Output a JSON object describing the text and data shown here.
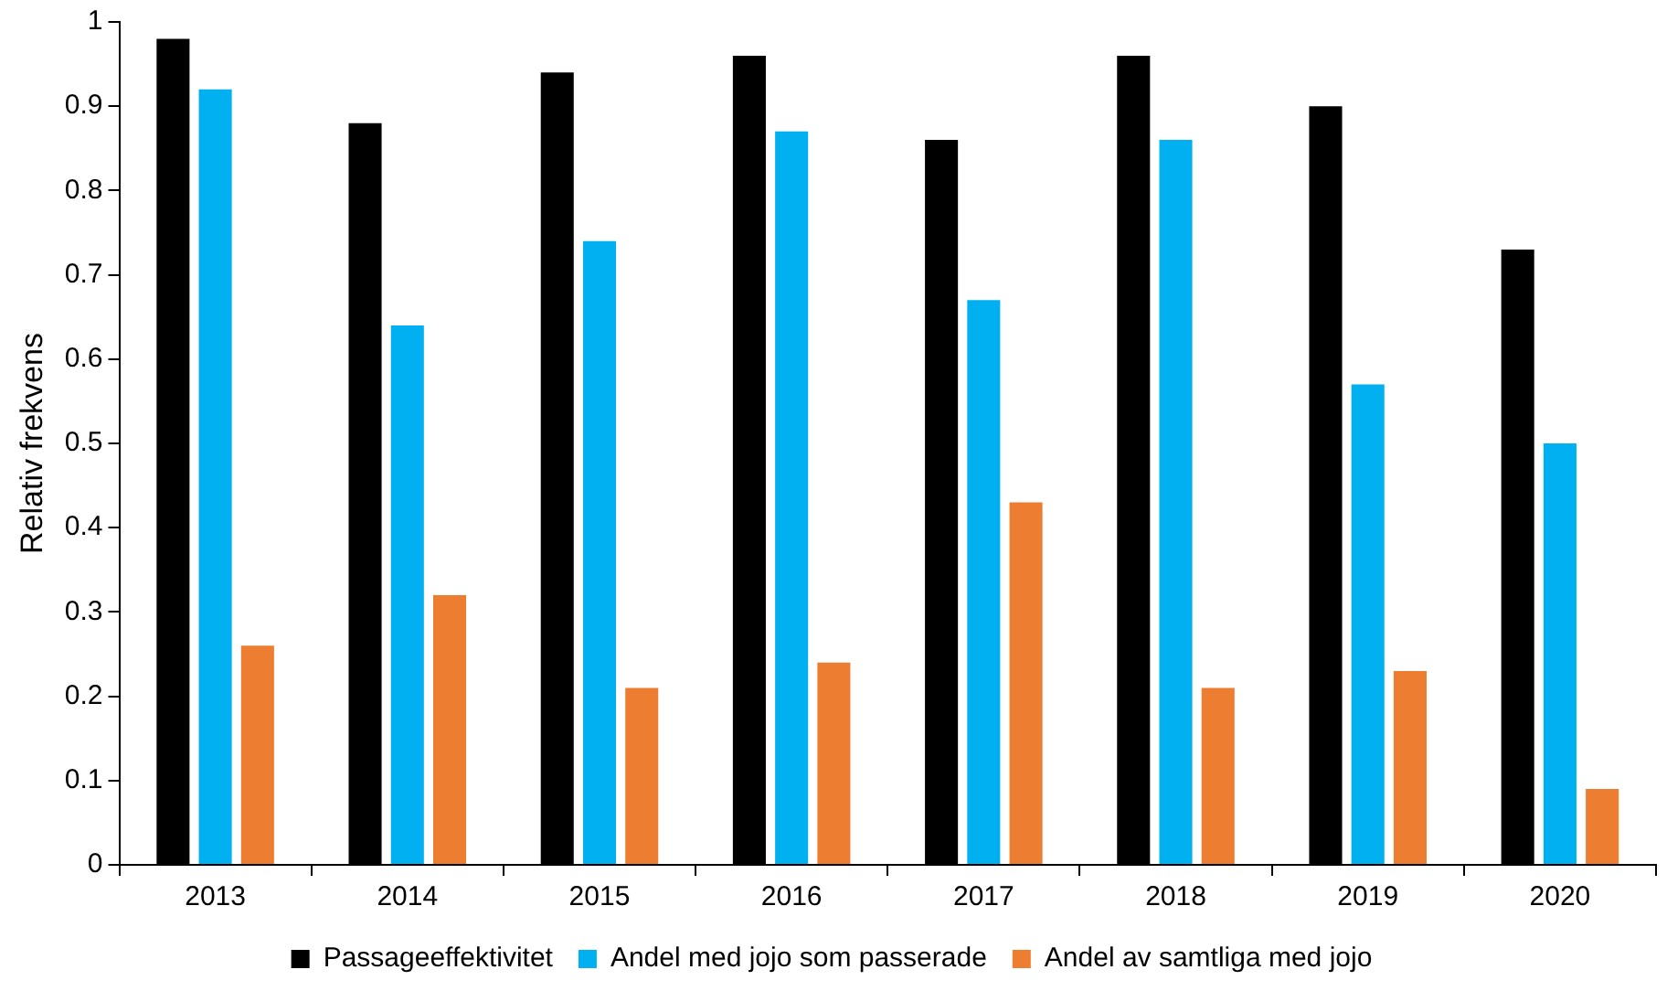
{
  "chart_data": {
    "type": "bar",
    "ylabel": "Relativ frekvens",
    "categories": [
      "2013",
      "2014",
      "2015",
      "2016",
      "2017",
      "2018",
      "2019",
      "2020"
    ],
    "series": [
      {
        "name": "Passageeffektivitet",
        "color": "#000000",
        "values": [
          0.98,
          0.88,
          0.94,
          0.96,
          0.86,
          0.96,
          0.9,
          0.73
        ]
      },
      {
        "name": "Andel med jojo som passerade",
        "color": "#00b0f0",
        "values": [
          0.92,
          0.64,
          0.74,
          0.87,
          0.67,
          0.86,
          0.57,
          0.5
        ]
      },
      {
        "name": "Andel av samtliga med jojo",
        "color": "#ed7d31",
        "values": [
          0.26,
          0.32,
          0.21,
          0.24,
          0.43,
          0.21,
          0.23,
          0.09
        ]
      }
    ],
    "ylim": [
      0,
      1
    ],
    "yticks": [
      0,
      0.1,
      0.2,
      0.3,
      0.4,
      0.5,
      0.6,
      0.7,
      0.8,
      0.9,
      1
    ],
    "grid": false,
    "legend": "bottom"
  }
}
